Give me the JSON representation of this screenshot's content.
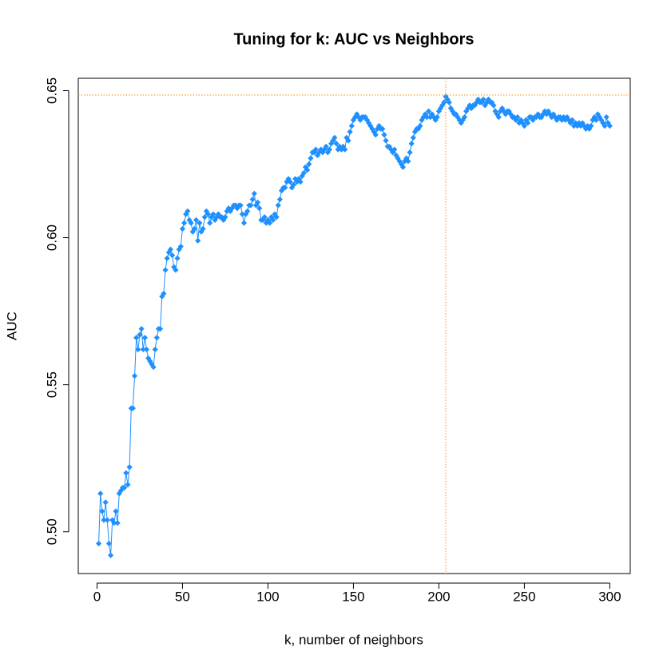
{
  "chart_data": {
    "type": "line",
    "title": "Tuning for k: AUC vs Neighbors",
    "x_label": "k, number of neighbors",
    "y_label": "AUC",
    "color": "#1e90ff",
    "ref_color": "#ff8c00",
    "vline": 204,
    "hline": 0.6485,
    "xlim": [
      -10.96,
      311.96
    ],
    "ylim": [
      0.4858,
      0.6542
    ],
    "xticks": [
      0,
      50,
      100,
      150,
      200,
      250,
      300
    ],
    "yticks": [
      {
        "value": 0.5,
        "label": "0.50"
      },
      0.55,
      {
        "value": 0.6,
        "label": "0.60"
      },
      0.65
    ],
    "x": [
      1,
      2,
      3,
      4,
      5,
      6,
      7,
      8,
      9,
      10,
      11,
      12,
      13,
      14,
      15,
      16,
      17,
      18,
      19,
      20,
      21,
      22,
      23,
      24,
      25,
      26,
      27,
      28,
      29,
      30,
      31,
      32,
      33,
      34,
      35,
      36,
      37,
      38,
      39,
      40,
      41,
      42,
      43,
      44,
      45,
      46,
      47,
      48,
      49,
      50,
      51,
      52,
      53,
      54,
      55,
      56,
      57,
      58,
      59,
      60,
      61,
      62,
      63,
      64,
      65,
      66,
      67,
      68,
      69,
      70,
      71,
      72,
      73,
      74,
      75,
      76,
      77,
      78,
      79,
      80,
      81,
      82,
      83,
      84,
      85,
      86,
      87,
      88,
      89,
      90,
      91,
      92,
      93,
      94,
      95,
      96,
      97,
      98,
      99,
      100,
      101,
      102,
      103,
      104,
      105,
      106,
      107,
      108,
      109,
      110,
      111,
      112,
      113,
      114,
      115,
      116,
      117,
      118,
      119,
      120,
      121,
      122,
      123,
      124,
      125,
      126,
      127,
      128,
      129,
      130,
      131,
      132,
      133,
      134,
      135,
      136,
      137,
      138,
      139,
      140,
      141,
      142,
      143,
      144,
      145,
      146,
      147,
      148,
      149,
      150,
      151,
      152,
      153,
      154,
      155,
      156,
      157,
      158,
      159,
      160,
      161,
      162,
      163,
      164,
      165,
      166,
      167,
      168,
      169,
      170,
      171,
      172,
      173,
      174,
      175,
      176,
      177,
      178,
      179,
      180,
      181,
      182,
      183,
      184,
      185,
      186,
      187,
      188,
      189,
      190,
      191,
      192,
      193,
      194,
      195,
      196,
      197,
      198,
      199,
      200,
      201,
      202,
      203,
      204,
      205,
      206,
      207,
      208,
      209,
      210,
      211,
      212,
      213,
      214,
      215,
      216,
      217,
      218,
      219,
      220,
      221,
      222,
      223,
      224,
      225,
      226,
      227,
      228,
      229,
      230,
      231,
      232,
      233,
      234,
      235,
      236,
      237,
      238,
      239,
      240,
      241,
      242,
      243,
      244,
      245,
      246,
      247,
      248,
      249,
      250,
      251,
      252,
      253,
      254,
      255,
      256,
      257,
      258,
      259,
      260,
      261,
      262,
      263,
      264,
      265,
      266,
      267,
      268,
      269,
      270,
      271,
      272,
      273,
      274,
      275,
      276,
      277,
      278,
      279,
      280,
      281,
      282,
      283,
      284,
      285,
      286,
      287,
      288,
      289,
      290,
      291,
      292,
      293,
      294,
      295,
      296,
      297,
      298,
      299,
      300
    ],
    "values": [
      0.496,
      0.513,
      0.507,
      0.504,
      0.51,
      0.504,
      0.496,
      0.492,
      0.504,
      0.503,
      0.507,
      0.503,
      0.513,
      0.514,
      0.515,
      0.515,
      0.52,
      0.516,
      0.522,
      0.542,
      0.542,
      0.553,
      0.566,
      0.562,
      0.567,
      0.569,
      0.562,
      0.566,
      0.562,
      0.559,
      0.558,
      0.557,
      0.556,
      0.562,
      0.566,
      0.569,
      0.569,
      0.58,
      0.581,
      0.589,
      0.593,
      0.595,
      0.596,
      0.594,
      0.59,
      0.589,
      0.593,
      0.596,
      0.597,
      0.603,
      0.605,
      0.608,
      0.609,
      0.606,
      0.605,
      0.602,
      0.603,
      0.606,
      0.599,
      0.605,
      0.602,
      0.603,
      0.607,
      0.609,
      0.608,
      0.605,
      0.607,
      0.608,
      0.606,
      0.607,
      0.608,
      0.607,
      0.607,
      0.606,
      0.607,
      0.609,
      0.61,
      0.609,
      0.61,
      0.611,
      0.611,
      0.61,
      0.611,
      0.611,
      0.608,
      0.605,
      0.608,
      0.609,
      0.611,
      0.611,
      0.613,
      0.615,
      0.611,
      0.612,
      0.61,
      0.606,
      0.606,
      0.607,
      0.605,
      0.606,
      0.605,
      0.607,
      0.606,
      0.608,
      0.607,
      0.611,
      0.613,
      0.616,
      0.617,
      0.617,
      0.619,
      0.62,
      0.619,
      0.617,
      0.618,
      0.62,
      0.619,
      0.62,
      0.619,
      0.621,
      0.622,
      0.624,
      0.623,
      0.625,
      0.627,
      0.629,
      0.629,
      0.63,
      0.628,
      0.629,
      0.63,
      0.629,
      0.63,
      0.631,
      0.629,
      0.63,
      0.632,
      0.633,
      0.634,
      0.632,
      0.63,
      0.631,
      0.63,
      0.631,
      0.63,
      0.634,
      0.633,
      0.636,
      0.638,
      0.64,
      0.641,
      0.642,
      0.641,
      0.64,
      0.641,
      0.641,
      0.641,
      0.64,
      0.639,
      0.638,
      0.637,
      0.636,
      0.635,
      0.637,
      0.638,
      0.637,
      0.637,
      0.635,
      0.633,
      0.631,
      0.631,
      0.63,
      0.629,
      0.63,
      0.628,
      0.627,
      0.626,
      0.625,
      0.624,
      0.626,
      0.627,
      0.626,
      0.629,
      0.632,
      0.634,
      0.636,
      0.637,
      0.637,
      0.638,
      0.64,
      0.641,
      0.642,
      0.641,
      0.643,
      0.641,
      0.642,
      0.641,
      0.64,
      0.641,
      0.643,
      0.644,
      0.645,
      0.646,
      0.648,
      0.647,
      0.646,
      0.644,
      0.643,
      0.642,
      0.642,
      0.641,
      0.64,
      0.639,
      0.64,
      0.641,
      0.643,
      0.644,
      0.645,
      0.644,
      0.645,
      0.645,
      0.646,
      0.647,
      0.646,
      0.646,
      0.647,
      0.645,
      0.646,
      0.647,
      0.646,
      0.646,
      0.645,
      0.643,
      0.642,
      0.641,
      0.643,
      0.644,
      0.643,
      0.642,
      0.643,
      0.643,
      0.642,
      0.641,
      0.641,
      0.64,
      0.641,
      0.639,
      0.64,
      0.639,
      0.638,
      0.64,
      0.639,
      0.641,
      0.641,
      0.64,
      0.641,
      0.641,
      0.642,
      0.641,
      0.641,
      0.642,
      0.643,
      0.642,
      0.643,
      0.642,
      0.641,
      0.642,
      0.641,
      0.64,
      0.641,
      0.641,
      0.64,
      0.641,
      0.64,
      0.641,
      0.64,
      0.639,
      0.64,
      0.638,
      0.639,
      0.638,
      0.639,
      0.638,
      0.639,
      0.638,
      0.637,
      0.638,
      0.637,
      0.638,
      0.64,
      0.641,
      0.64,
      0.642,
      0.641,
      0.64,
      0.639,
      0.638,
      0.641,
      0.639,
      0.638
    ]
  }
}
